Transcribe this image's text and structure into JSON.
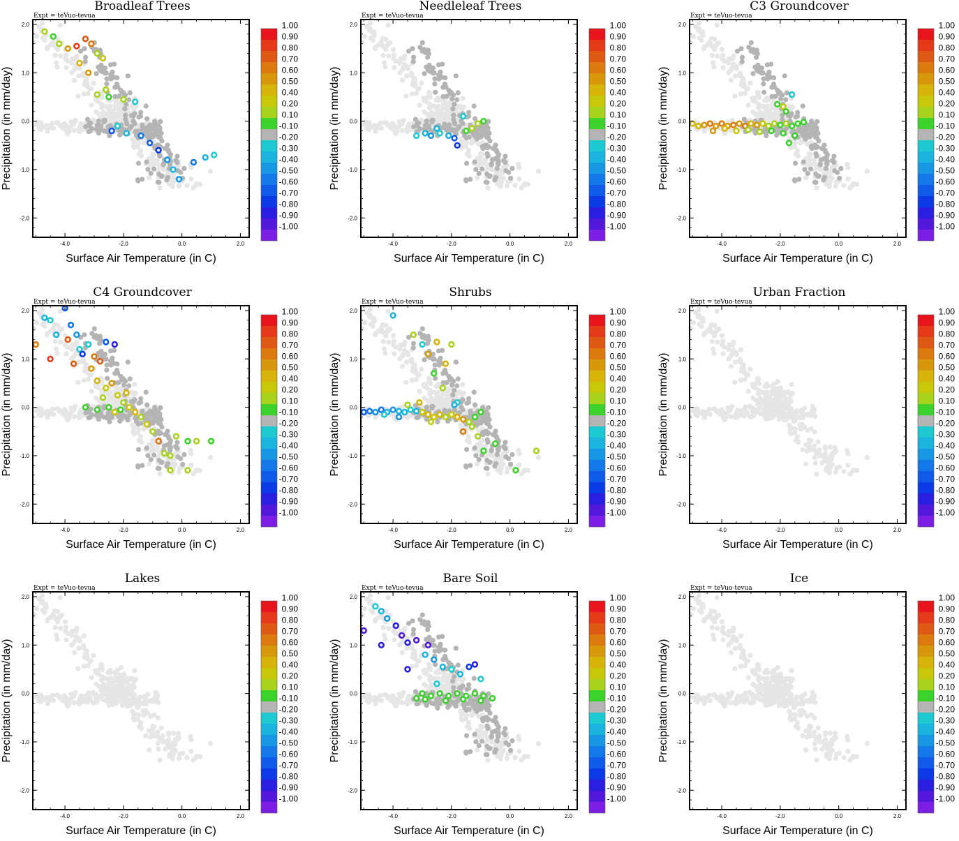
{
  "figure": {
    "colorbar_labels": [
      "1.00",
      "0.90",
      "0.80",
      "0.70",
      "0.60",
      "0.50",
      "0.40",
      "0.20",
      "0.10",
      "-0.10",
      "-0.20",
      "-0.30",
      "-0.40",
      "-0.50",
      "-0.60",
      "-0.70",
      "-0.80",
      "-0.90",
      "-1.00"
    ],
    "colorbar_colors": [
      "#e8141c",
      "#e43a1a",
      "#de5a14",
      "#dc7a10",
      "#d8980c",
      "#d6b40a",
      "#c8c80a",
      "#a8d21c",
      "#3cd22c",
      "#b4b4b4",
      "#1ecad2",
      "#1ab4de",
      "#1898e4",
      "#1478e8",
      "#105aea",
      "#0c3ae6",
      "#2a1ee0",
      "#5218dc",
      "#7c1ee4"
    ],
    "background_point_color": "#e6e6e6",
    "nonsignificant_color": "#b4b4b4",
    "x_ticks": [
      "-4.0",
      "-2.0",
      "0.0",
      "2.0"
    ],
    "y_ticks": [
      "2.0",
      "1.0",
      "0.0",
      "-1.0",
      "-2.0"
    ]
  },
  "chart_data": [
    {
      "type": "scatter",
      "title": "Broadleaf Trees",
      "annotation": "Expt = teVuo-tevua",
      "xlabel": "Surface Air Temperature (in C)",
      "ylabel": "Precipitation (in mm/day)",
      "xlim": [
        -5.1,
        2.3
      ],
      "ylim": [
        -2.4,
        2.1
      ],
      "grid": false,
      "legend": "colorbar-right",
      "colorbar_range": [
        -1.0,
        1.0
      ],
      "points": [
        [
          -4.7,
          1.85,
          0.2
        ],
        [
          -4.4,
          1.75,
          0.1
        ],
        [
          -4.2,
          1.6,
          0.3
        ],
        [
          -3.9,
          1.5,
          0.6
        ],
        [
          -3.6,
          1.55,
          0.9
        ],
        [
          -3.3,
          1.7,
          0.8
        ],
        [
          -3.1,
          1.6,
          0.7
        ],
        [
          -2.9,
          1.4,
          0.2
        ],
        [
          -2.7,
          1.3,
          0.4
        ],
        [
          -3.5,
          1.2,
          0.5
        ],
        [
          -3.2,
          1.0,
          0.6
        ],
        [
          -2.6,
          0.65,
          0.2
        ],
        [
          -2.9,
          0.55,
          0.3
        ],
        [
          -2.5,
          0.5,
          0.1
        ],
        [
          -2.0,
          0.45,
          0.2
        ],
        [
          -2.2,
          -0.1,
          -0.2
        ],
        [
          -1.9,
          -0.25,
          -0.3
        ],
        [
          -1.4,
          -0.3,
          -0.5
        ],
        [
          -1.1,
          -0.45,
          -0.6
        ],
        [
          -0.8,
          -0.6,
          -0.7
        ],
        [
          -0.5,
          -0.8,
          -0.4
        ],
        [
          -0.3,
          -1.0,
          -0.3
        ],
        [
          -0.1,
          -1.2,
          -0.4
        ],
        [
          0.4,
          -0.85,
          -0.5
        ],
        [
          0.8,
          -0.75,
          -0.3
        ],
        [
          1.1,
          -0.7,
          -0.2
        ],
        [
          -1.6,
          0.4,
          -0.2
        ],
        [
          -2.4,
          -0.2,
          -0.6
        ]
      ]
    },
    {
      "type": "scatter",
      "title": "Needleleaf Trees",
      "annotation": "Expt = teVuo-tevua",
      "xlabel": "Surface Air Temperature (in C)",
      "ylabel": "Precipitation (in mm/day)",
      "xlim": [
        -5.1,
        2.3
      ],
      "ylim": [
        -2.4,
        2.1
      ],
      "grid": false,
      "legend": "colorbar-right",
      "colorbar_range": [
        -1.0,
        1.0
      ],
      "points": [
        [
          -3.2,
          -0.3,
          -0.2
        ],
        [
          -2.9,
          -0.25,
          -0.3
        ],
        [
          -2.7,
          -0.3,
          -0.4
        ],
        [
          -2.4,
          -0.25,
          -0.2
        ],
        [
          -2.1,
          -0.3,
          -0.3
        ],
        [
          -1.9,
          -0.35,
          -0.6
        ],
        [
          -1.8,
          -0.5,
          -0.7
        ],
        [
          -1.5,
          -0.2,
          0.1
        ],
        [
          -1.3,
          -0.15,
          0.2
        ],
        [
          -1.1,
          -0.05,
          0.2
        ],
        [
          -0.9,
          0.0,
          0.1
        ],
        [
          -1.6,
          0.1,
          -0.2
        ],
        [
          -2.5,
          -0.15,
          -0.3
        ]
      ]
    },
    {
      "type": "scatter",
      "title": "C3 Groundcover",
      "annotation": "Expt = teVuo-tevua",
      "xlabel": "Surface Air Temperature (in C)",
      "ylabel": "Precipitation (in mm/day)",
      "xlim": [
        -5.1,
        2.3
      ],
      "ylim": [
        -2.4,
        2.1
      ],
      "grid": false,
      "legend": "colorbar-right",
      "colorbar_range": [
        -1.0,
        1.0
      ],
      "points": [
        [
          -5.0,
          -0.05,
          0.5
        ],
        [
          -4.8,
          -0.1,
          0.5
        ],
        [
          -4.6,
          -0.08,
          0.6
        ],
        [
          -4.4,
          -0.05,
          0.7
        ],
        [
          -4.2,
          -0.1,
          0.6
        ],
        [
          -4.0,
          -0.05,
          0.7
        ],
        [
          -3.8,
          -0.1,
          0.6
        ],
        [
          -3.6,
          -0.08,
          0.7
        ],
        [
          -3.4,
          -0.05,
          0.6
        ],
        [
          -3.2,
          -0.1,
          0.7
        ],
        [
          -3.0,
          -0.05,
          0.5
        ],
        [
          -2.8,
          -0.08,
          0.6
        ],
        [
          -2.6,
          -0.05,
          0.4
        ],
        [
          -2.4,
          -0.1,
          0.3
        ],
        [
          -2.2,
          -0.05,
          0.2
        ],
        [
          -2.0,
          -0.08,
          0.1
        ],
        [
          -1.8,
          -0.05,
          0.2
        ],
        [
          -1.6,
          -0.1,
          0.1
        ],
        [
          -1.4,
          -0.05,
          0.1
        ],
        [
          -1.2,
          -0.02,
          0.1
        ],
        [
          -4.3,
          -0.2,
          0.6
        ],
        [
          -3.9,
          -0.15,
          0.5
        ],
        [
          -3.5,
          -0.2,
          0.4
        ],
        [
          -3.1,
          -0.18,
          0.3
        ],
        [
          -2.7,
          -0.22,
          0.2
        ],
        [
          -2.3,
          -0.2,
          0.1
        ],
        [
          -1.9,
          -0.25,
          0.1
        ],
        [
          -1.5,
          -0.3,
          0.1
        ],
        [
          -1.7,
          -0.45,
          0.1
        ],
        [
          -1.9,
          0.3,
          0.4
        ],
        [
          -2.1,
          0.35,
          0.1
        ],
        [
          -1.6,
          0.55,
          -0.2
        ],
        [
          -1.8,
          0.2,
          0.1
        ]
      ]
    },
    {
      "type": "scatter",
      "title": "C4 Groundcover",
      "annotation": "Expt = teVuo-tevua",
      "xlabel": "Surface Air Temperature (in C)",
      "ylabel": "Precipitation (in mm/day)",
      "xlim": [
        -5.1,
        2.3
      ],
      "ylim": [
        -2.4,
        2.1
      ],
      "grid": false,
      "legend": "colorbar-right",
      "colorbar_range": [
        -1.0,
        1.0
      ],
      "points": [
        [
          -5.0,
          1.3,
          0.7
        ],
        [
          -4.7,
          1.85,
          -0.3
        ],
        [
          -4.5,
          1.8,
          -0.2
        ],
        [
          -4.3,
          1.5,
          -0.3
        ],
        [
          -4.0,
          2.05,
          -0.6
        ],
        [
          -3.9,
          1.4,
          0.8
        ],
        [
          -3.8,
          1.7,
          -0.5
        ],
        [
          -3.6,
          1.5,
          -0.4
        ],
        [
          -3.5,
          1.2,
          -0.2
        ],
        [
          -3.4,
          1.1,
          -0.7
        ],
        [
          -3.2,
          1.3,
          -0.2
        ],
        [
          -3.0,
          1.05,
          0.7
        ],
        [
          -2.8,
          0.95,
          0.8
        ],
        [
          -2.6,
          1.35,
          -0.6
        ],
        [
          -2.3,
          1.3,
          -0.8
        ],
        [
          -4.5,
          1.0,
          0.9
        ],
        [
          -3.7,
          0.9,
          0.8
        ],
        [
          -3.1,
          0.8,
          0.6
        ],
        [
          -2.9,
          0.55,
          0.5
        ],
        [
          -2.6,
          0.4,
          0.4
        ],
        [
          -2.4,
          0.5,
          0.6
        ],
        [
          -2.2,
          0.25,
          0.4
        ],
        [
          -2.0,
          0.1,
          0.3
        ],
        [
          -1.8,
          0.0,
          0.4
        ],
        [
          -1.6,
          -0.1,
          0.5
        ],
        [
          -1.4,
          -0.2,
          0.3
        ],
        [
          -1.2,
          -0.35,
          0.4
        ],
        [
          -3.3,
          0.0,
          0.1
        ],
        [
          -2.9,
          -0.05,
          0.1
        ],
        [
          -2.5,
          0.0,
          0.1
        ],
        [
          -2.1,
          -0.05,
          0.1
        ],
        [
          -1.0,
          -0.5,
          0.2
        ],
        [
          -0.8,
          -0.7,
          0.7
        ],
        [
          -0.6,
          -0.95,
          0.3
        ],
        [
          -0.4,
          -1.0,
          0.2
        ],
        [
          -0.2,
          -0.6,
          0.3
        ],
        [
          0.2,
          -0.7,
          0.1
        ],
        [
          0.5,
          -0.7,
          0.2
        ],
        [
          1.0,
          -0.7,
          0.1
        ],
        [
          0.2,
          -1.3,
          0.2
        ],
        [
          -0.4,
          -1.3,
          0.3
        ],
        [
          -2.7,
          0.2,
          0.2
        ],
        [
          -2.3,
          -0.1,
          0.4
        ],
        [
          -1.9,
          0.3,
          0.5
        ]
      ]
    },
    {
      "type": "scatter",
      "title": "Shrubs",
      "annotation": "Expt = teVuo-tevua",
      "xlabel": "Surface Air Temperature (in C)",
      "ylabel": "Precipitation (in mm/day)",
      "xlim": [
        -5.1,
        2.3
      ],
      "ylim": [
        -2.4,
        2.1
      ],
      "grid": false,
      "legend": "colorbar-right",
      "colorbar_range": [
        -1.0,
        1.0
      ],
      "points": [
        [
          -5.0,
          -0.1,
          -0.6
        ],
        [
          -4.8,
          -0.08,
          -0.5
        ],
        [
          -4.6,
          -0.1,
          -0.4
        ],
        [
          -4.4,
          -0.05,
          -0.5
        ],
        [
          -4.2,
          -0.1,
          -0.3
        ],
        [
          -4.0,
          -0.05,
          -0.4
        ],
        [
          -3.8,
          -0.08,
          -0.3
        ],
        [
          -3.6,
          -0.1,
          -0.3
        ],
        [
          -3.4,
          -0.05,
          -0.2
        ],
        [
          -3.2,
          -0.08,
          -0.3
        ],
        [
          -3.0,
          -0.1,
          0.4
        ],
        [
          -2.8,
          -0.15,
          0.5
        ],
        [
          -2.6,
          -0.2,
          0.4
        ],
        [
          -2.4,
          -0.15,
          0.5
        ],
        [
          -2.2,
          -0.2,
          0.3
        ],
        [
          -2.0,
          -0.15,
          0.4
        ],
        [
          -1.8,
          -0.2,
          0.5
        ],
        [
          -1.6,
          -0.25,
          0.6
        ],
        [
          -1.4,
          -0.3,
          0.2
        ],
        [
          -1.2,
          -0.2,
          0.1
        ],
        [
          -1.0,
          -0.1,
          0.1
        ],
        [
          -4.0,
          1.9,
          -0.3
        ],
        [
          -3.3,
          1.5,
          0.2
        ],
        [
          -3.0,
          1.3,
          -0.2
        ],
        [
          -2.8,
          1.1,
          0.6
        ],
        [
          -2.5,
          1.35,
          0.5
        ],
        [
          -2.0,
          1.3,
          0.3
        ],
        [
          -2.6,
          0.7,
          0.1
        ],
        [
          -2.3,
          0.4,
          0.2
        ],
        [
          -2.2,
          0.9,
          0.5
        ],
        [
          -1.8,
          0.1,
          -0.2
        ],
        [
          -1.6,
          -0.5,
          0.7
        ],
        [
          -1.3,
          -0.4,
          0.2
        ],
        [
          -1.1,
          -0.6,
          0.2
        ],
        [
          -0.9,
          -0.9,
          0.1
        ],
        [
          -0.5,
          -0.75,
          0.1
        ],
        [
          0.2,
          -1.3,
          0.1
        ],
        [
          0.9,
          -0.9,
          0.2
        ],
        [
          -4.3,
          -0.15,
          -0.2
        ],
        [
          -3.8,
          -0.2,
          -0.4
        ],
        [
          -3.5,
          0.05,
          0.3
        ],
        [
          -3.1,
          0.1,
          0.5
        ],
        [
          -2.7,
          -0.3,
          0.4
        ],
        [
          -1.9,
          0.05,
          -0.3
        ]
      ]
    },
    {
      "type": "scatter",
      "title": "Urban Fraction",
      "annotation": "Expt = teVuo-tevua",
      "xlabel": "Surface Air Temperature (in C)",
      "ylabel": "Precipitation (in mm/day)",
      "xlim": [
        -5.1,
        2.3
      ],
      "ylim": [
        -2.4,
        2.1
      ],
      "grid": false,
      "legend": "colorbar-right",
      "colorbar_range": [
        -1.0,
        1.0
      ],
      "points": []
    },
    {
      "type": "scatter",
      "title": "Lakes",
      "annotation": "Expt = teVuo-tevua",
      "xlabel": "Surface Air Temperature (in C)",
      "ylabel": "Precipitation (in mm/day)",
      "xlim": [
        -5.1,
        2.3
      ],
      "ylim": [
        -2.4,
        2.1
      ],
      "grid": false,
      "legend": "colorbar-right",
      "colorbar_range": [
        -1.0,
        1.0
      ],
      "points": []
    },
    {
      "type": "scatter",
      "title": "Bare Soil",
      "annotation": "Expt = teVuo-tevua",
      "xlabel": "Surface Air Temperature (in C)",
      "ylabel": "Precipitation (in mm/day)",
      "xlim": [
        -5.1,
        2.3
      ],
      "ylim": [
        -2.4,
        2.1
      ],
      "grid": false,
      "legend": "colorbar-right",
      "colorbar_range": [
        -1.0,
        1.0
      ],
      "points": [
        [
          -5.0,
          1.3,
          -0.9
        ],
        [
          -4.6,
          1.8,
          -0.2
        ],
        [
          -4.4,
          1.7,
          -0.3
        ],
        [
          -4.2,
          1.55,
          -0.4
        ],
        [
          -3.9,
          1.4,
          -0.8
        ],
        [
          -3.7,
          1.2,
          -0.9
        ],
        [
          -4.4,
          1.0,
          -0.8
        ],
        [
          -3.5,
          1.05,
          -0.8
        ],
        [
          -3.2,
          1.1,
          -0.9
        ],
        [
          -2.8,
          1.0,
          -0.9
        ],
        [
          -2.9,
          0.8,
          -0.3
        ],
        [
          -2.6,
          0.7,
          -0.4
        ],
        [
          -2.3,
          0.55,
          -0.3
        ],
        [
          -2.0,
          0.5,
          -0.2
        ],
        [
          -1.7,
          0.4,
          -0.3
        ],
        [
          -1.4,
          0.55,
          -0.7
        ],
        [
          -1.2,
          0.6,
          -0.8
        ],
        [
          -1.0,
          0.3,
          -0.2
        ],
        [
          -2.5,
          0.2,
          -0.2
        ],
        [
          -3.5,
          0.5,
          -0.8
        ],
        [
          -3.0,
          0.0,
          0.1
        ],
        [
          -2.7,
          -0.05,
          0.1
        ],
        [
          -2.4,
          0.0,
          0.1
        ],
        [
          -2.1,
          -0.05,
          0.1
        ],
        [
          -1.8,
          0.0,
          0.1
        ],
        [
          -1.5,
          -0.05,
          0.1
        ],
        [
          -1.2,
          0.0,
          0.1
        ],
        [
          -0.9,
          -0.05,
          0.1
        ],
        [
          -0.6,
          -0.1,
          0.1
        ],
        [
          -3.2,
          -0.1,
          0.1
        ],
        [
          -2.9,
          -0.12,
          0.1
        ],
        [
          -2.2,
          -0.15,
          0.1
        ],
        [
          -1.6,
          -0.12,
          0.1
        ],
        [
          -1.0,
          -0.15,
          0.1
        ]
      ]
    },
    {
      "type": "scatter",
      "title": "Ice",
      "annotation": "Expt = teVuo-tevua",
      "xlabel": "Surface Air Temperature (in C)",
      "ylabel": "Precipitation (in mm/day)",
      "xlim": [
        -5.1,
        2.3
      ],
      "ylim": [
        -2.4,
        2.1
      ],
      "grid": false,
      "legend": "colorbar-right",
      "colorbar_range": [
        -1.0,
        1.0
      ],
      "points": []
    }
  ]
}
